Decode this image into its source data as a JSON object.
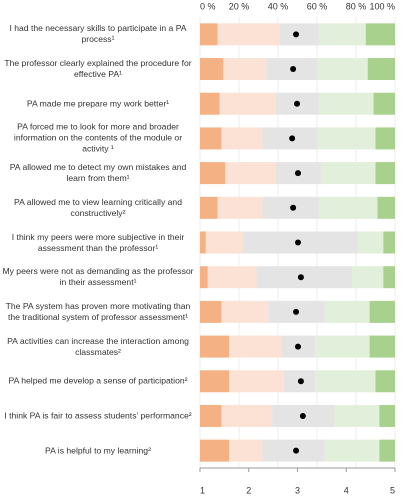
{
  "chart_data": {
    "type": "stacked-barh",
    "categories": [
      "I had the necessary skills to participate in a PA process¹",
      "The professor clearly explained the procedure for effective PA¹",
      "PA made me prepare my work better¹",
      "PA forced me to look for more and broader information on the contents of the module or activity ¹",
      "PA allowed me to detect my own mistakes and learn from them¹",
      "PA allowed me to view learning critically and constructively²",
      "I think my peers were more subjective in their assessment than the professor¹",
      "My peers were not as demanding as the professor in their assessment¹",
      "The PA system has proven more motivating than the traditional system of professor assessment¹",
      "PA activities can increase the interaction among classmates²",
      "PA helped me develop a sense of participation²",
      "I think PA is fair to assess students' performance²",
      "PA is helpful to my learning²"
    ],
    "series": [
      {
        "color": "#f4b183",
        "values": [
          9,
          12,
          10,
          11,
          13,
          9,
          3,
          4,
          11,
          15,
          15,
          11,
          15
        ]
      },
      {
        "color": "#fbe2d5",
        "values": [
          32,
          22,
          29,
          21,
          26,
          23,
          19,
          25,
          24,
          27,
          28,
          26,
          17
        ]
      },
      {
        "color": "#e4e4e4",
        "values": [
          20,
          26,
          22,
          28,
          23,
          29,
          59,
          49,
          29,
          17,
          16,
          32,
          32
        ]
      },
      {
        "color": "#e2efda",
        "values": [
          24,
          26,
          28,
          30,
          28,
          30,
          13,
          16,
          23,
          28,
          31,
          23,
          28
        ]
      },
      {
        "color": "#a9d18e",
        "values": [
          15,
          14,
          11,
          10,
          10,
          9,
          6,
          6,
          13,
          13,
          10,
          8,
          8
        ]
      }
    ],
    "means": [
      2.97,
      2.91,
      2.99,
      2.89,
      3.01,
      2.91,
      3.01,
      3.07,
      2.97,
      3.01,
      3.07,
      3.11,
      2.97
    ],
    "mean_color": "#000000",
    "xlim": [
      0,
      100
    ],
    "xticks": [
      {
        "value": 0,
        "label": "0 %"
      },
      {
        "value": 20,
        "label": "20 %"
      },
      {
        "value": 40,
        "label": "40 %"
      },
      {
        "value": 60,
        "label": "60 %"
      },
      {
        "value": 80,
        "label": "80 %"
      },
      {
        "value": 100,
        "label": "100 %"
      }
    ],
    "x2lim": [
      1,
      5
    ],
    "x2ticks": [
      1,
      2,
      3,
      4,
      5
    ]
  }
}
